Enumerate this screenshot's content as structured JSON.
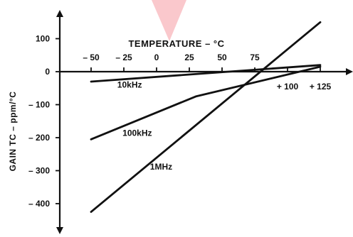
{
  "chart_data": {
    "type": "line",
    "title": "TEMPERATURE – °C",
    "xlabel": "TEMPERATURE – °C",
    "ylabel": "GAIN TC – ppm/°C",
    "xlim": [
      -50,
      125
    ],
    "ylim": [
      -400,
      100
    ],
    "x_ticks_top": [
      -50,
      -25,
      0,
      25,
      50,
      75
    ],
    "x_tick_labels_top": [
      "– 50",
      "– 25",
      "0",
      "25",
      "50",
      "75"
    ],
    "x_ticks_bottom": [
      100,
      125
    ],
    "x_tick_labels_bottom": [
      "+ 100",
      "+ 125"
    ],
    "y_ticks": [
      100,
      0,
      -100,
      -200,
      -300,
      -400
    ],
    "y_tick_labels": [
      "100",
      "0",
      "– 100",
      "– 200",
      "– 300",
      "– 400"
    ],
    "grid": false,
    "legend": "inline labels",
    "series": [
      {
        "name": "10kHz",
        "points": [
          [
            -50,
            -30
          ],
          [
            125,
            20
          ]
        ]
      },
      {
        "name": "100kHz",
        "points": [
          [
            -50,
            -205
          ],
          [
            30,
            -75
          ],
          [
            125,
            15
          ]
        ]
      },
      {
        "name": "1MHz",
        "points": [
          [
            -50,
            -425
          ],
          [
            125,
            150
          ]
        ]
      }
    ],
    "annotations": [
      {
        "text": "10kHz",
        "x": -30,
        "y": -48
      },
      {
        "text": "100kHz",
        "x": -26,
        "y": -195
      },
      {
        "text": "1MHz",
        "x": -5,
        "y": -297
      }
    ]
  }
}
